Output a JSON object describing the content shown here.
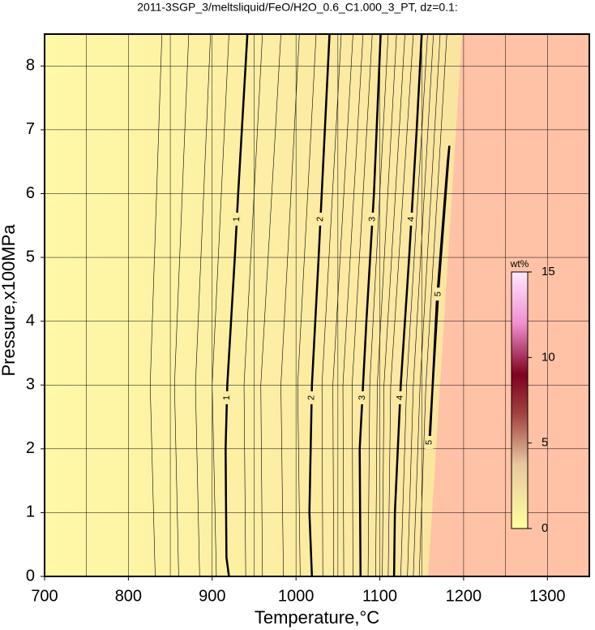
{
  "chart_data": {
    "type": "contour",
    "title": "2011-3SGP_3/meltsliquid/FeO/H2O_0.6_C1.000_3_PT, dz=0.1:",
    "x_label": "Temperature,°C",
    "y_label": "Pressure,x100MPa",
    "xlim": [
      700,
      1350
    ],
    "ylim": [
      0,
      8.5
    ],
    "xticks": [
      700,
      800,
      900,
      1000,
      1100,
      1200,
      1300
    ],
    "x_grid": [
      700,
      750,
      800,
      850,
      900,
      950,
      1000,
      1050,
      1100,
      1150,
      1200,
      1250,
      1300,
      1350
    ],
    "yticks": [
      0,
      1,
      2,
      3,
      4,
      5,
      6,
      7,
      8
    ],
    "grid": true,
    "colorbar": {
      "label": "wt%",
      "lim": [
        0,
        15
      ],
      "ticks": [
        0,
        5,
        10,
        15
      ]
    },
    "contours": [
      {
        "level": 1,
        "x": [
          920,
          917,
          916,
          918,
          927,
          931,
          942
        ],
        "y": [
          0,
          0.3,
          2,
          3,
          5,
          6,
          8.5
        ]
      },
      {
        "level": 2,
        "x": [
          1019,
          1016,
          1019,
          1027,
          1040
        ],
        "y": [
          0,
          1,
          3,
          5,
          8.5
        ]
      },
      {
        "level": 3,
        "x": [
          1077,
          1076,
          1084,
          1093,
          1101
        ],
        "y": [
          0,
          2,
          4,
          6,
          8.5
        ]
      },
      {
        "level": 4,
        "x": [
          1117,
          1118,
          1125,
          1135,
          1144,
          1150
        ],
        "y": [
          0,
          1,
          3,
          5,
          7,
          8.5
        ]
      },
      {
        "level": 5,
        "x": [
          1159,
          1170,
          1183,
          1181,
          1168,
          1160,
          1159
        ],
        "y": [
          2.1,
          4.5,
          6.75,
          6.5,
          4.3,
          2.2,
          2.1
        ]
      }
    ],
    "minor_contours": [
      {
        "level": 0.2,
        "x": [
          832,
          826,
          840
        ],
        "y": [
          0,
          3,
          8.5
        ]
      },
      {
        "level": 0.4,
        "x": [
          860,
          855,
          872
        ],
        "y": [
          0,
          3,
          8.5
        ]
      },
      {
        "level": 0.6,
        "x": [
          885,
          880,
          898
        ],
        "y": [
          0,
          3,
          8.5
        ]
      },
      {
        "level": 0.8,
        "x": [
          905,
          900,
          920
        ],
        "y": [
          0,
          3,
          8.5
        ]
      },
      {
        "level": 1.2,
        "x": [
          940,
          938,
          960
        ],
        "y": [
          0,
          3,
          8.5
        ]
      },
      {
        "level": 1.4,
        "x": [
          960,
          958,
          982
        ],
        "y": [
          0,
          3,
          8.5
        ]
      },
      {
        "level": 1.6,
        "x": [
          985,
          982,
          1004
        ],
        "y": [
          0,
          3,
          8.5
        ]
      },
      {
        "level": 1.8,
        "x": [
          1005,
          1002,
          1024
        ],
        "y": [
          0,
          3,
          8.5
        ]
      },
      {
        "level": 2.2,
        "x": [
          1032,
          1031,
          1054
        ],
        "y": [
          0,
          3,
          8.5
        ]
      },
      {
        "level": 2.4,
        "x": [
          1045,
          1044,
          1068
        ],
        "y": [
          0,
          3,
          8.5
        ]
      },
      {
        "level": 2.6,
        "x": [
          1057,
          1056,
          1080
        ],
        "y": [
          0,
          3,
          8.5
        ]
      },
      {
        "level": 2.8,
        "x": [
          1068,
          1067,
          1091
        ],
        "y": [
          0,
          3,
          8.5
        ]
      },
      {
        "level": 3.2,
        "x": [
          1086,
          1088,
          1110
        ],
        "y": [
          0,
          3,
          8.5
        ]
      },
      {
        "level": 3.4,
        "x": [
          1095,
          1097,
          1120
        ],
        "y": [
          0,
          3,
          8.5
        ]
      },
      {
        "level": 3.6,
        "x": [
          1103,
          1105,
          1130
        ],
        "y": [
          0,
          3,
          8.5
        ]
      },
      {
        "level": 3.8,
        "x": [
          1110,
          1113,
          1140
        ],
        "y": [
          0,
          3,
          8.5
        ]
      },
      {
        "level": 4.2,
        "x": [
          1125,
          1132,
          1157
        ],
        "y": [
          0,
          3,
          8.5
        ]
      },
      {
        "level": 4.4,
        "x": [
          1133,
          1140,
          1164
        ],
        "y": [
          0,
          3,
          8.5
        ]
      },
      {
        "level": 4.6,
        "x": [
          1140,
          1148,
          1172
        ],
        "y": [
          0,
          3,
          8.5
        ]
      },
      {
        "level": 4.8,
        "x": [
          1147,
          1155,
          1180
        ],
        "y": [
          0,
          3,
          8.5
        ]
      }
    ]
  }
}
